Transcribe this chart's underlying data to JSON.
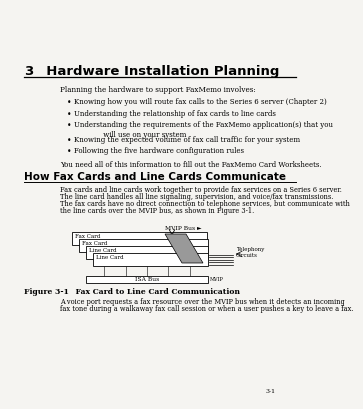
{
  "title_number": "3",
  "title_text": "  Hardware Installation Planning",
  "bg_color": "#f5f4f1",
  "intro_text": "Planning the hardware to support FaxMemo involves:",
  "bullets": [
    "Knowing how you will route fax calls to the Series 6 server (Chapter 2)",
    "Understanding the relationship of fax cards to line cards",
    "Understanding the requirements of the FaxMemo application(s) that you\n        will use on your system",
    "Knowing the expected volume of fax call traffic for your system",
    "Following the five hardware configuration rules"
  ],
  "closing_text": "You need all of this information to fill out the FaxMemo Card Worksheets.",
  "section2_title": "How Fax Cards and Line Cards Communicate",
  "section2_body_lines": [
    "Fax cards and line cards work together to provide fax services on a Series 6 server.",
    "The line card handles all line signaling, supervision, and voice/fax transmissions.",
    "The fax cards have no direct connection to telephone services, but communicate with",
    "the line cards over the MVIP bus, as shown in Figure 3-1."
  ],
  "diagram_labels": {
    "mvip_bus": "MVIP Bus",
    "fax_card1": "Fax Card",
    "fax_card2": "Fax Card",
    "line_card1": "Line Card",
    "line_card2": "Line Card",
    "telephony": "Telephony\nCircuits",
    "isa_bus": "ISA Bus"
  },
  "figure_label": "Figure 3-1",
  "figure_caption": "    Fax Card to Line Card Communication",
  "footer_line1": "A voice port requests a fax resource over the MVIP bus when it detects an incoming",
  "footer_line2": "fax tone during a walkaway fax call session or when a user pushes a key to leave a fax.",
  "page_num": "3-1"
}
